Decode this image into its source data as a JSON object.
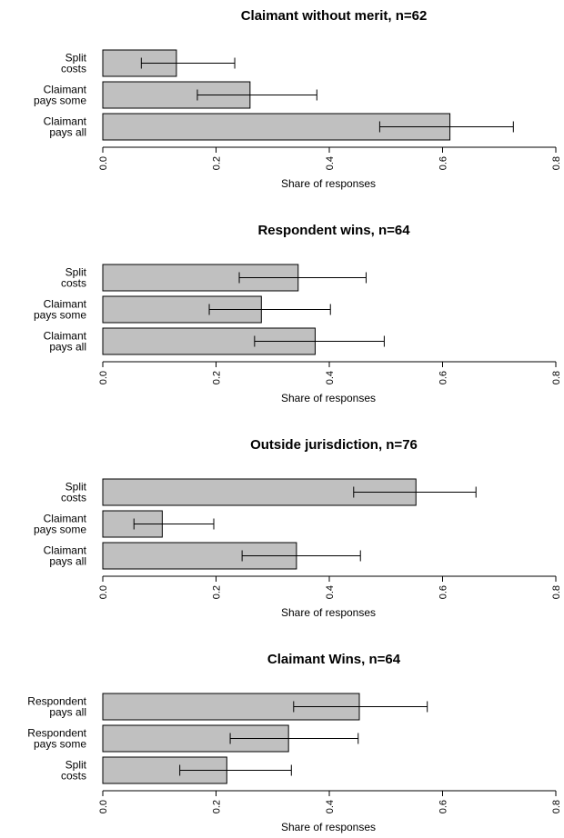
{
  "chart_data": [
    {
      "type": "bar",
      "orientation": "horizontal",
      "title": "Claimant without merit, n=62",
      "xlabel": "Share of responses",
      "xlim": [
        0,
        0.8
      ],
      "ticks": [
        "0.0",
        "0.2",
        "0.4",
        "0.6",
        "0.8"
      ],
      "categories": [
        {
          "lines": [
            "Split",
            "costs"
          ],
          "value": 0.13,
          "lo": 0.068,
          "hi": 0.233
        },
        {
          "lines": [
            "Claimant",
            "pays some"
          ],
          "value": 0.26,
          "lo": 0.167,
          "hi": 0.378
        },
        {
          "lines": [
            "Claimant",
            "pays all"
          ],
          "value": 0.613,
          "lo": 0.489,
          "hi": 0.725
        }
      ]
    },
    {
      "type": "bar",
      "orientation": "horizontal",
      "title": "Respondent wins, n=64",
      "xlabel": "Share of responses",
      "xlim": [
        0,
        0.8
      ],
      "ticks": [
        "0.0",
        "0.2",
        "0.4",
        "0.6",
        "0.8"
      ],
      "categories": [
        {
          "lines": [
            "Split",
            "costs"
          ],
          "value": 0.345,
          "lo": 0.241,
          "hi": 0.465
        },
        {
          "lines": [
            "Claimant",
            "pays some"
          ],
          "value": 0.28,
          "lo": 0.188,
          "hi": 0.402
        },
        {
          "lines": [
            "Claimant",
            "pays all"
          ],
          "value": 0.375,
          "lo": 0.268,
          "hi": 0.497
        }
      ]
    },
    {
      "type": "bar",
      "orientation": "horizontal",
      "title": "Outside jurisdiction, n=76",
      "xlabel": "Share of responses",
      "xlim": [
        0,
        0.8
      ],
      "ticks": [
        "0.0",
        "0.2",
        "0.4",
        "0.6",
        "0.8"
      ],
      "categories": [
        {
          "lines": [
            "Split",
            "costs"
          ],
          "value": 0.553,
          "lo": 0.443,
          "hi": 0.659
        },
        {
          "lines": [
            "Claimant",
            "pays some"
          ],
          "value": 0.105,
          "lo": 0.055,
          "hi": 0.196
        },
        {
          "lines": [
            "Claimant",
            "pays all"
          ],
          "value": 0.342,
          "lo": 0.246,
          "hi": 0.455
        }
      ]
    },
    {
      "type": "bar",
      "orientation": "horizontal",
      "title": "Claimant Wins, n=64",
      "xlabel": "Share of responses",
      "xlim": [
        0,
        0.8
      ],
      "ticks": [
        "0.0",
        "0.2",
        "0.4",
        "0.6",
        "0.8"
      ],
      "categories": [
        {
          "lines": [
            "Respondent",
            "pays all"
          ],
          "value": 0.453,
          "lo": 0.337,
          "hi": 0.573
        },
        {
          "lines": [
            "Respondent",
            "pays some"
          ],
          "value": 0.328,
          "lo": 0.225,
          "hi": 0.451
        },
        {
          "lines": [
            "Split",
            "costs"
          ],
          "value": 0.219,
          "lo": 0.136,
          "hi": 0.333
        }
      ]
    }
  ],
  "colors": {
    "bar_fill": "#c0c0c0",
    "stroke": "#000000",
    "background": "#ffffff"
  }
}
